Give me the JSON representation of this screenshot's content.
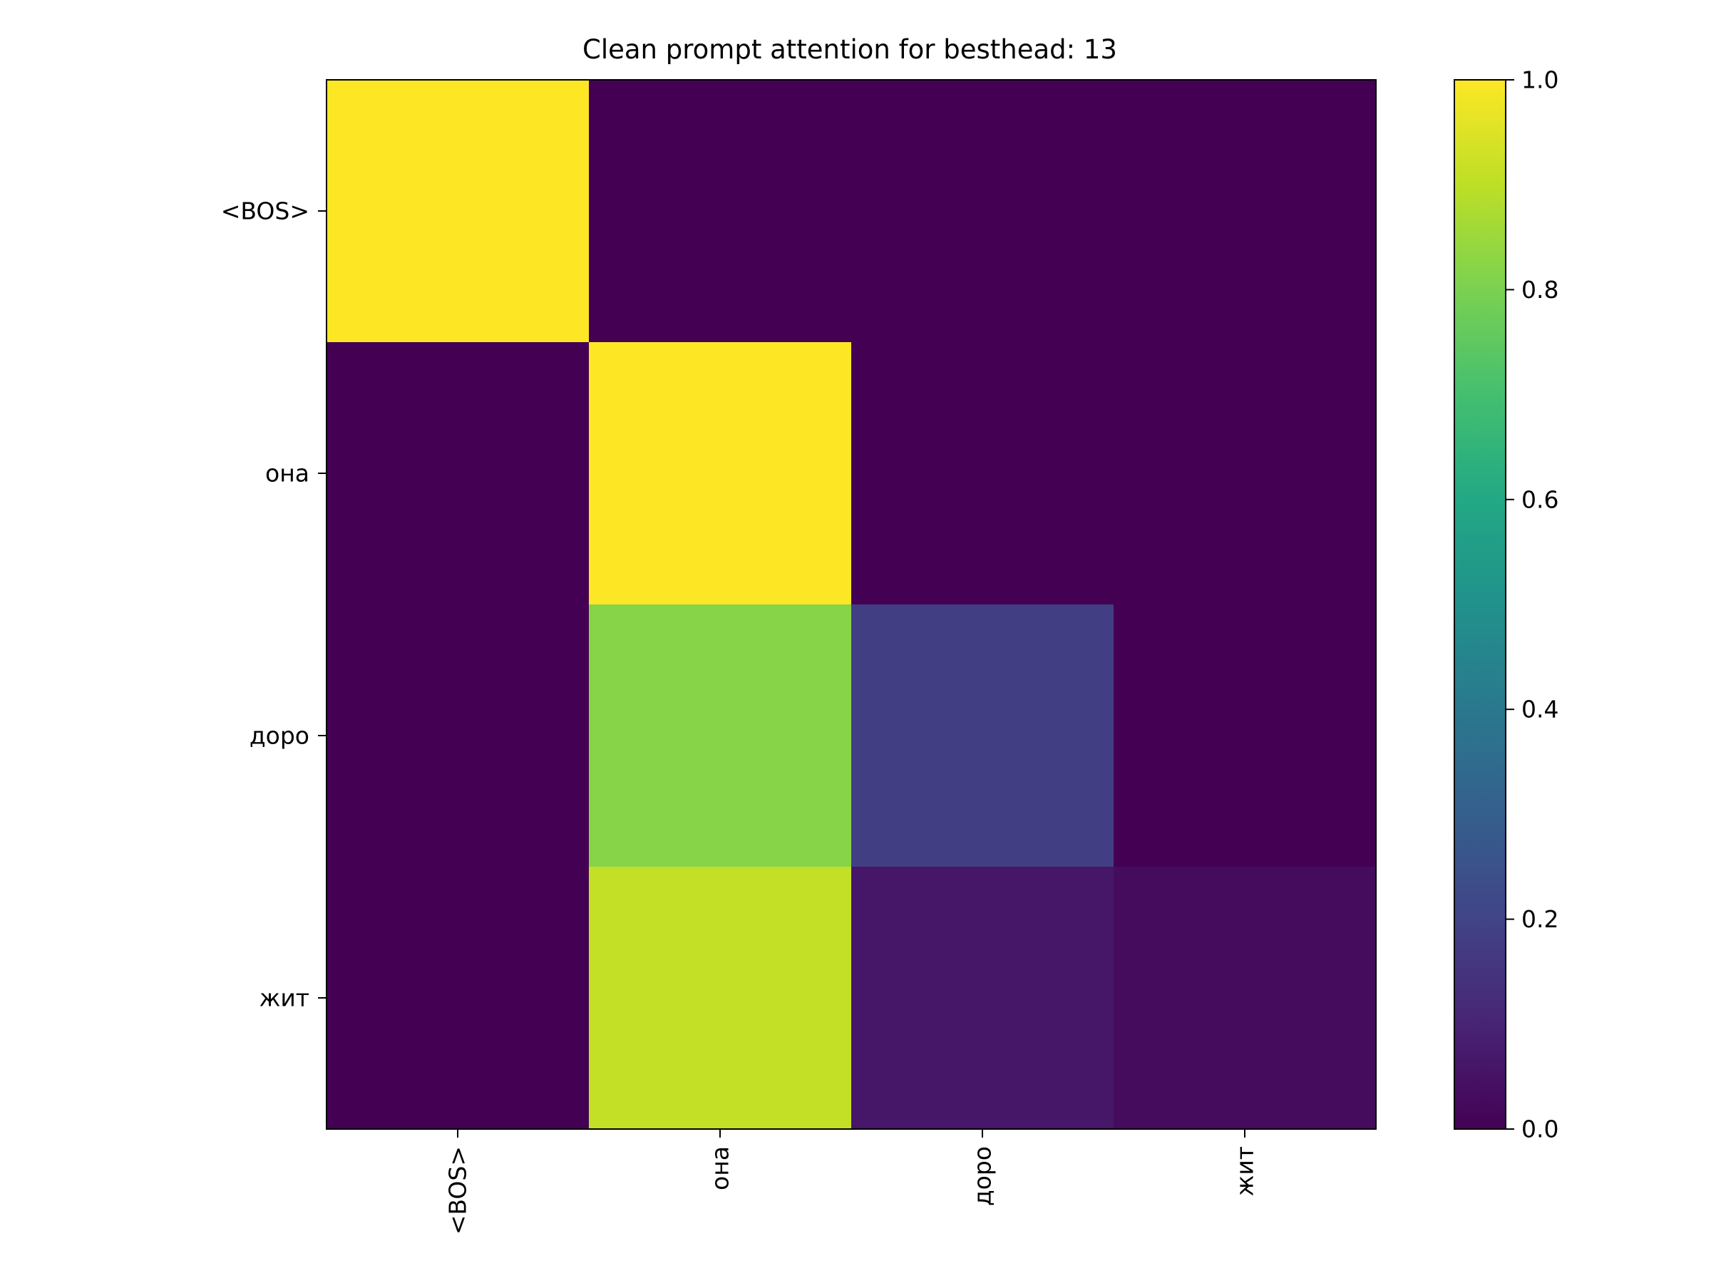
{
  "chart_data": {
    "type": "heatmap",
    "title": "Clean prompt attention for besthead: 13",
    "x_tokens": [
      "<BOS>",
      "она",
      "доро",
      "жит"
    ],
    "y_tokens": [
      "<BOS>",
      "она",
      "доро",
      "жит"
    ],
    "values": [
      [
        1.0,
        0.0,
        0.0,
        0.0
      ],
      [
        0.0,
        1.0,
        0.0,
        0.0
      ],
      [
        0.0,
        0.82,
        0.18,
        0.0
      ],
      [
        0.0,
        0.91,
        0.06,
        0.03
      ]
    ],
    "colormap": "viridis",
    "vmin": 0.0,
    "vmax": 1.0,
    "colorbar_ticks": [
      "0.0",
      "0.2",
      "0.4",
      "0.6",
      "0.8",
      "1.0"
    ],
    "xtick_rotation": "vertical",
    "grid": false
  }
}
